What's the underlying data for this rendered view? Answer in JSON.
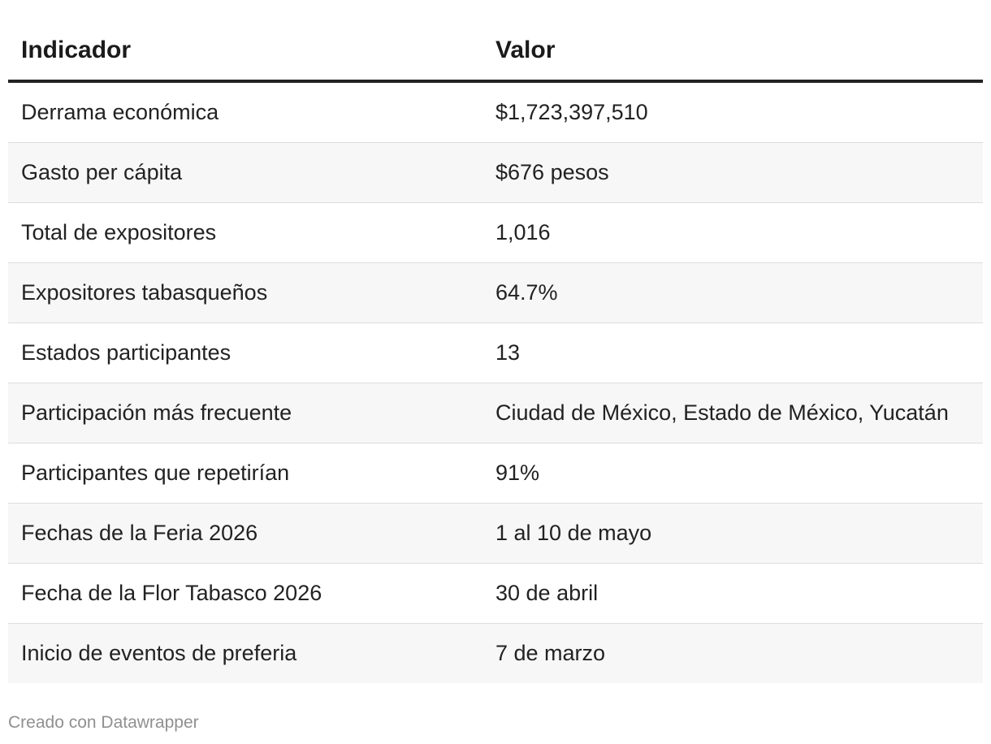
{
  "table": {
    "headers": {
      "indicator": "Indicador",
      "value": "Valor"
    },
    "rows": [
      {
        "indicator": "Derrama económica",
        "value": "$1,723,397,510"
      },
      {
        "indicator": "Gasto per cápita",
        "value": "$676 pesos"
      },
      {
        "indicator": "Total de expositores",
        "value": "1,016"
      },
      {
        "indicator": "Expositores tabasqueños",
        "value": "64.7%"
      },
      {
        "indicator": "Estados participantes",
        "value": "13"
      },
      {
        "indicator": "Participación más frecuente",
        "value": "Ciudad de México, Estado de México, Yucatán"
      },
      {
        "indicator": "Participantes que repetirían",
        "value": "91%"
      },
      {
        "indicator": "Fechas de la Feria 2026",
        "value": "1 al 10 de mayo"
      },
      {
        "indicator": "Fecha de la Flor Tabasco 2026",
        "value": "30 de abril"
      },
      {
        "indicator": "Inicio de eventos de preferia",
        "value": "7 de marzo"
      }
    ]
  },
  "footer": {
    "credit": "Creado con Datawrapper"
  },
  "colors": {
    "header_rule": "#222222",
    "stripe": "#f7f7f7",
    "row_border": "#dddddd",
    "footer_text": "#909090"
  }
}
